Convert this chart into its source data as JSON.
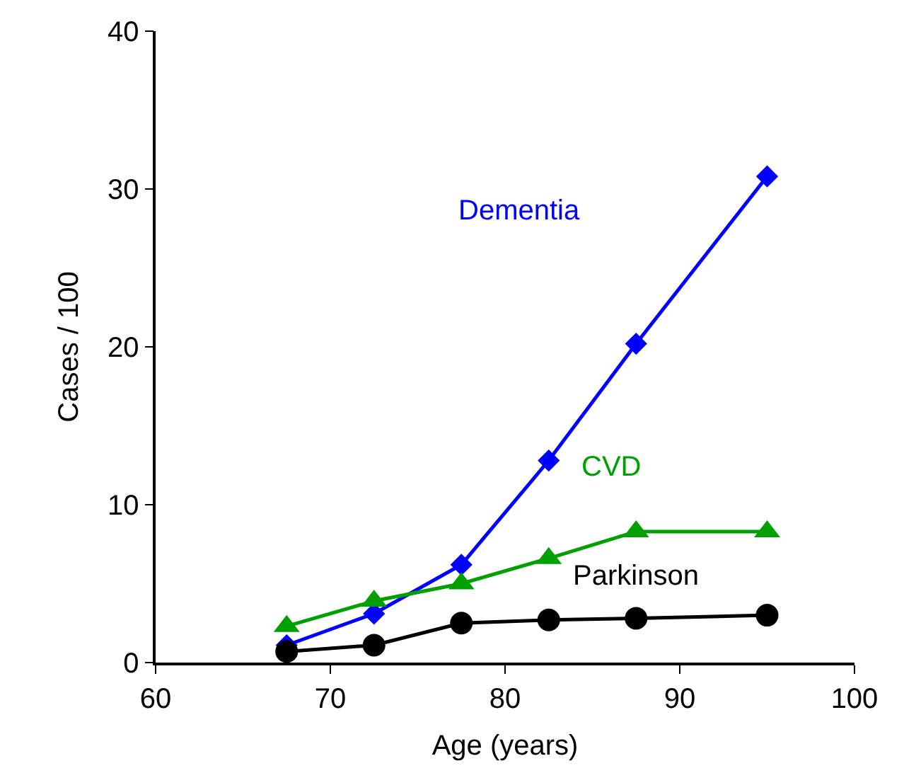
{
  "chart_data": {
    "type": "line",
    "xlabel": "Age (years)",
    "ylabel": "Cases / 100",
    "x": [
      67.5,
      72.5,
      77.5,
      82.5,
      87.5,
      95
    ],
    "series": [
      {
        "name": "Dementia",
        "color": "#0000ff",
        "marker": "diamond",
        "values": [
          1.1,
          3.1,
          6.2,
          12.8,
          20.2,
          30.8
        ]
      },
      {
        "name": "CVD",
        "color": "#00a000",
        "marker": "triangle",
        "values": [
          2.3,
          3.9,
          5.0,
          6.6,
          8.3,
          8.3
        ]
      },
      {
        "name": "Parkinson",
        "color": "#000000",
        "marker": "circle",
        "values": [
          0.7,
          1.1,
          2.5,
          2.7,
          2.8,
          3.0
        ]
      }
    ],
    "xlim": [
      60,
      100
    ],
    "xticks": [
      60,
      70,
      80,
      90,
      100
    ],
    "ylim": [
      0,
      40
    ],
    "yticks": [
      0,
      10,
      20,
      30,
      40
    ],
    "legend": false
  }
}
